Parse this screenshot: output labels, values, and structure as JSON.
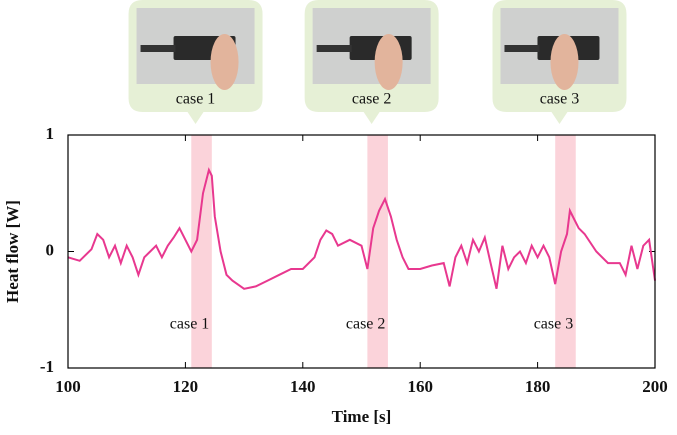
{
  "chart_data": {
    "type": "line",
    "xlabel": "Time [s]",
    "ylabel": "Heat flow [W]",
    "xlim": [
      100,
      200
    ],
    "ylim": [
      -1,
      1
    ],
    "xticks": [
      100,
      120,
      140,
      160,
      180,
      200
    ],
    "yticks": [
      -1,
      0,
      1
    ],
    "highlight_color": "#fbd3da",
    "callout_color": "#e6f0d6",
    "highlights": [
      {
        "label": "case 1",
        "range": [
          121,
          124.5
        ]
      },
      {
        "label": "case 2",
        "range": [
          151,
          154.5
        ]
      },
      {
        "label": "case 3",
        "range": [
          183,
          186.5
        ]
      }
    ],
    "callouts": [
      {
        "label": "case 1"
      },
      {
        "label": "case 2"
      },
      {
        "label": "case 3"
      }
    ],
    "series": [
      {
        "name": "Heat flow",
        "color": "#e8388f",
        "x": [
          100,
          102,
          104,
          105,
          106,
          107,
          108,
          109,
          110,
          111,
          112,
          113,
          114,
          115,
          116,
          117,
          118,
          119,
          120,
          121,
          122,
          123,
          124,
          124.5,
          125,
          126,
          127,
          128,
          130,
          132,
          134,
          136,
          138,
          140,
          142,
          143,
          144,
          145,
          146,
          148,
          150,
          151,
          152,
          153,
          154,
          155,
          156,
          157,
          158,
          160,
          162,
          164,
          165,
          166,
          167,
          168,
          169,
          170,
          171,
          172,
          173,
          174,
          175,
          176,
          177,
          178,
          179,
          180,
          181,
          182,
          183,
          184,
          185,
          185.5,
          186,
          187,
          188,
          190,
          192,
          194,
          195,
          196,
          197,
          198,
          199,
          200
        ],
        "values": [
          -0.05,
          -0.08,
          0.02,
          0.15,
          0.1,
          -0.05,
          0.05,
          -0.1,
          0.05,
          -0.05,
          -0.2,
          -0.05,
          0,
          0.05,
          -0.05,
          0.05,
          0.12,
          0.2,
          0.1,
          0,
          0.1,
          0.5,
          0.7,
          0.65,
          0.3,
          0,
          -0.2,
          -0.25,
          -0.32,
          -0.3,
          -0.25,
          -0.2,
          -0.15,
          -0.15,
          -0.05,
          0.1,
          0.18,
          0.15,
          0.05,
          0.1,
          0.05,
          -0.15,
          0.2,
          0.35,
          0.45,
          0.3,
          0.1,
          -0.05,
          -0.15,
          -0.15,
          -0.12,
          -0.1,
          -0.3,
          -0.05,
          0.05,
          -0.1,
          0.1,
          0,
          0.12,
          -0.1,
          -0.32,
          0.05,
          -0.15,
          -0.05,
          0,
          -0.1,
          0.05,
          -0.05,
          0.05,
          -0.05,
          -0.28,
          0,
          0.15,
          0.35,
          0.3,
          0.2,
          0.15,
          0,
          -0.1,
          -0.1,
          -0.2,
          0.05,
          -0.15,
          0.05,
          0.1,
          -0.25
        ]
      }
    ]
  }
}
